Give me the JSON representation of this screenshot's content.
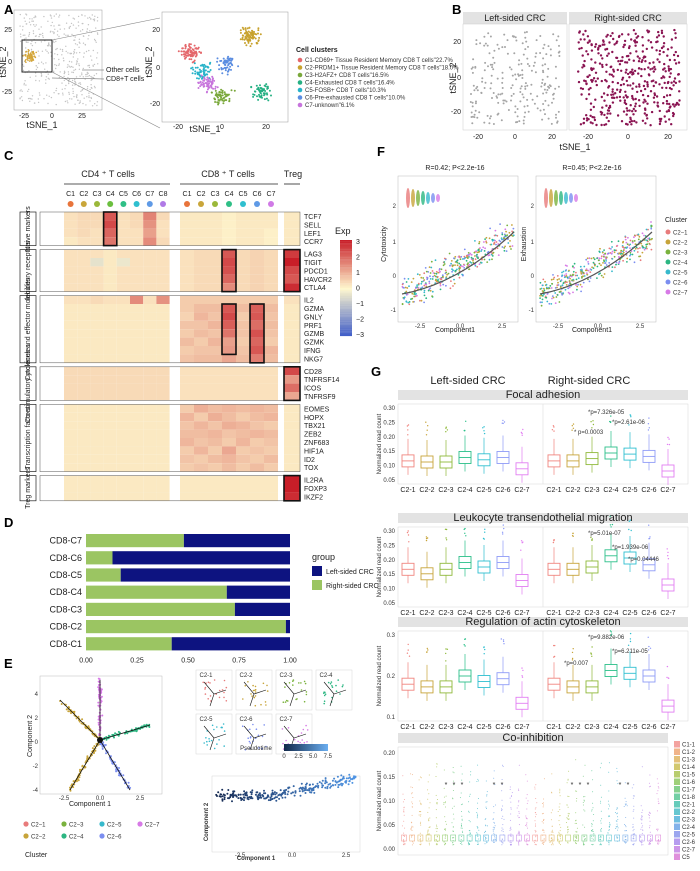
{
  "panels": {
    "a": {
      "letter": "A",
      "xlabel": "tSNE_1",
      "ylabel": "tSNE_2",
      "ticks_x": [
        "-25",
        "0",
        "25"
      ],
      "ticks_y": [
        "-25",
        "0",
        "25"
      ],
      "other_cells": "Other cells",
      "cd8_cells": "CD8+T cells",
      "zoom_ticks_x": [
        "-20",
        "0",
        "20"
      ],
      "zoom_ticks_y": [
        "-20",
        "0",
        "20"
      ],
      "legend_title": "Cell clusters",
      "legend": [
        {
          "label": "C1-CD69+ Tissue Resident Memory CD8 T cells\"22.7%",
          "color": "#e4676b"
        },
        {
          "label": "C2-PRDM1+ Tissue Resident Memory CD8 T cells\"18.0%",
          "color": "#c8a22e"
        },
        {
          "label": "C3-H2AFZ+ CD8 T cells\"16.5%",
          "color": "#7aa83b"
        },
        {
          "label": "C4-Exhausted CD8 T cells\"16.4%",
          "color": "#25b083"
        },
        {
          "label": "C5-FOSB+ CD8 T cells\"10.3%",
          "color": "#27b3c9"
        },
        {
          "label": "C6-Pre-exhausted CD8 T cells\"10.0%",
          "color": "#5b8de1"
        },
        {
          "label": "C7-unknown\"6.1%",
          "color": "#c774dc"
        }
      ]
    },
    "b": {
      "letter": "B",
      "left_title": "Left-sided CRC",
      "right_title": "Right-sided CRC",
      "xlabel": "tSNE_1",
      "ylabel": "tSNE_2",
      "ticks_x": [
        "-20",
        "0",
        "20"
      ],
      "ticks_y": [
        "-20",
        "0",
        "20"
      ],
      "left_color": "#a5a5a5",
      "right_color": "#8a1452"
    },
    "c": {
      "letter": "C",
      "cd4_title": "CD4 ⁺ T cells",
      "cd8_title": "CD8 ⁺ T cells",
      "treg_title": "Treg",
      "cd4_cols": [
        "C1",
        "C2",
        "C3",
        "C4",
        "C5",
        "C6",
        "C7",
        "C8"
      ],
      "cd8_cols": [
        "C1",
        "C2",
        "C3",
        "C4",
        "C5",
        "C6",
        "C7"
      ],
      "groups": [
        {
          "label": "Naive markers",
          "genes": [
            "TCF7",
            "SELL",
            "LEF1",
            "CCR7"
          ]
        },
        {
          "label": "Inhibitory receptors",
          "genes": [
            "LAG3",
            "TIGIT",
            "PDCD1",
            "HAVCR2",
            "CTLA4"
          ]
        },
        {
          "label": "Cytokines and effector molecules",
          "genes": [
            "IL2",
            "GZMA",
            "GNLY",
            "PRF1",
            "GZMB",
            "GZMK",
            "IFNG",
            "NKG7"
          ]
        },
        {
          "label": "Co-stimulatory molecules",
          "genes": [
            "CD28",
            "TNFRSF14",
            "ICOS",
            "TNFRSF9"
          ]
        },
        {
          "label": "Transcription factors",
          "genes": [
            "EOMES",
            "HOPX",
            "TBX21",
            "ZEB2",
            "ZNF683",
            "HIF1A",
            "ID2",
            "TOX"
          ]
        },
        {
          "label": "Treg markers",
          "genes": [
            "IL2RA",
            "FOXP3",
            "IKZF2"
          ]
        }
      ],
      "scale_title": "Exp",
      "scale_ticks": [
        "3",
        "2",
        "1",
        "0",
        "−1",
        "−2",
        "−3"
      ]
    },
    "d": {
      "letter": "D",
      "legend_title": "group",
      "x_ticks": [
        "0.00",
        "0.25",
        "0.50",
        "0.75",
        "1.00"
      ]
    },
    "e": {
      "letter": "E",
      "xlabel": "Component 1",
      "ylabel": "Component 2",
      "ticks_x": [
        "-2.5",
        "0.0",
        "2.5"
      ],
      "ticks_y": [
        "-4",
        "-2",
        "0",
        "2",
        "4"
      ],
      "small_titles": [
        "C2-1",
        "C2-2",
        "C2-3",
        "C2-4",
        "C2-5",
        "C2-6",
        "C2-7"
      ],
      "pseudotime_label": "Pseudotime",
      "pseudotime_ticks": [
        "0",
        "2.5",
        "5.0",
        "7.5"
      ],
      "cluster_title": "Cluster",
      "cluster_legend": [
        "C2−1",
        "C2−3",
        "C2−5",
        "C2−7",
        "C2−2",
        "C2−4",
        "C2−6"
      ]
    },
    "f": {
      "letter": "F",
      "left_stat": "R=0.42; P<2.2e-16",
      "right_stat": "R=0.45; P<2.2e-16",
      "left_ylabel": "Cytotoxicity",
      "right_ylabel": "Exhaustion",
      "xlabel": "Component1",
      "ticks_x": [
        "-2.5",
        "0.0",
        "2.5"
      ],
      "ticks_y": [
        "2",
        "1",
        "0",
        "-1"
      ],
      "legend_title": "Cluster"
    },
    "g": {
      "letter": "G",
      "left_title": "Left-sided CRC",
      "right_title": "Right-sided CRC",
      "ylabel": "Normalized read count",
      "x_cats": [
        "C2-1",
        "C2-2",
        "C2-3",
        "C2-4",
        "C2-5",
        "C2-6",
        "C2-7"
      ],
      "subplots": [
        {
          "title": "Focal adhesion",
          "y_ticks": [
            "0.30",
            "0.25",
            "0.20",
            "0.15",
            "0.10",
            "0.05"
          ],
          "pvals": [
            "*p=7.326e-05",
            "*p=2.61e-06",
            "* p=0.0003"
          ]
        },
        {
          "title": "Leukocyte transendothelial  migration",
          "y_ticks": [
            "0.30",
            "0.25",
            "0.20",
            "0.15",
            "0.10",
            "0.05"
          ],
          "pvals": [
            "*p=5.01e-07",
            "*p=1.939e-06",
            "*p=0.04446"
          ]
        },
        {
          "title": "Regulation of actin cytoskeleton",
          "y_ticks": [
            "0.3",
            "0.2",
            "0.1"
          ],
          "pvals": [
            "*p=9.882e-06",
            "*p=6.211e-05",
            "*p=0.007"
          ]
        },
        {
          "title": "Co-inhibition",
          "y_ticks": [
            "0.20",
            "0.15",
            "0.10",
            "0.05",
            "0.00"
          ],
          "pvals": []
        }
      ],
      "co_legend": [
        "C1-1",
        "C1-2",
        "C1-3",
        "C1-4",
        "C1-5",
        "C1-6",
        "C1-7",
        "C1-8",
        "C2-1",
        "C2-2",
        "C2-3",
        "C2-4",
        "C2-5",
        "C2-6",
        "C2-7",
        "C5"
      ]
    }
  },
  "chart_data": [
    {
      "type": "bar",
      "panel": "D",
      "orientation": "horizontal",
      "stacked": true,
      "categories": [
        "CD8-C7",
        "CD8-C6",
        "CD8-C5",
        "CD8-C4",
        "CD8-C3",
        "CD8-C2",
        "CD8-C1"
      ],
      "series": [
        {
          "name": "Left-sided CRC",
          "color": "#0d1380",
          "values": [
            0.52,
            0.87,
            0.83,
            0.31,
            0.27,
            0.02,
            0.58
          ]
        },
        {
          "name": "Right-sided CRC",
          "color": "#9bc562",
          "values": [
            0.48,
            0.13,
            0.17,
            0.69,
            0.73,
            0.98,
            0.42
          ]
        }
      ],
      "xlim": [
        0,
        1
      ]
    },
    {
      "type": "heatmap",
      "panel": "C",
      "color_range": [
        -3,
        3
      ],
      "columns": [
        "CD4-C1",
        "CD4-C2",
        "CD4-C3",
        "CD4-C4",
        "CD4-C5",
        "CD4-C6",
        "CD4-C7",
        "CD4-C8",
        "CD8-C1",
        "CD8-C2",
        "CD8-C3",
        "CD8-C4",
        "CD8-C5",
        "CD8-C6",
        "CD8-C7",
        "Treg"
      ],
      "rows": [
        "TCF7",
        "SELL",
        "LEF1",
        "CCR7",
        "LAG3",
        "TIGIT",
        "PDCD1",
        "HAVCR2",
        "CTLA4",
        "IL2",
        "GZMA",
        "GNLY",
        "PRF1",
        "GZMB",
        "GZMK",
        "IFNG",
        "NKG7",
        "CD28",
        "TNFRSF14",
        "ICOS",
        "TNFRSF9",
        "EOMES",
        "HOPX",
        "TBX21",
        "ZEB2",
        "ZNF683",
        "HIF1A",
        "ID2",
        "TOX",
        "IL2RA",
        "FOXP3",
        "IKZF2"
      ],
      "values": [
        [
          0.3,
          0.4,
          0.4,
          2.2,
          0.3,
          0.4,
          1.6,
          0.4,
          0.2,
          0.2,
          0.2,
          0.1,
          0.2,
          0.2,
          0.2,
          0.2
        ],
        [
          0.3,
          0.4,
          0.4,
          2.4,
          0.3,
          0.4,
          1.4,
          0.3,
          0.2,
          0.2,
          0.2,
          0.1,
          0.2,
          0.2,
          0.2,
          0.2
        ],
        [
          0.3,
          0.4,
          0.3,
          2.0,
          0.3,
          0.3,
          1.2,
          0.3,
          0.2,
          0.2,
          0.2,
          0.1,
          0.2,
          0.2,
          0.1,
          0.2
        ],
        [
          0.2,
          0.3,
          0.3,
          1.8,
          0.3,
          0.3,
          1.5,
          0.4,
          0.2,
          0.2,
          0.2,
          0.1,
          0.2,
          0.2,
          0.1,
          0.2
        ],
        [
          0.3,
          0.3,
          0.3,
          0.2,
          0.3,
          0.3,
          0.3,
          0.3,
          0.3,
          0.4,
          0.4,
          2.2,
          0.4,
          0.5,
          0.4,
          2.6
        ],
        [
          0.3,
          0.3,
          -0.4,
          0.2,
          -0.3,
          0.3,
          0.3,
          0.3,
          0.3,
          0.4,
          0.4,
          2.4,
          0.4,
          0.5,
          0.4,
          3.0
        ],
        [
          0.3,
          0.3,
          0.3,
          0.2,
          0.3,
          0.3,
          0.3,
          0.3,
          0.3,
          0.4,
          0.4,
          2.3,
          0.4,
          0.5,
          0.4,
          2.4
        ],
        [
          0.3,
          0.3,
          0.3,
          0.2,
          0.3,
          0.3,
          0.3,
          0.3,
          0.3,
          0.4,
          0.4,
          2.0,
          0.4,
          0.5,
          0.4,
          2.2
        ],
        [
          0.3,
          0.3,
          0.3,
          0.2,
          0.3,
          0.3,
          0.3,
          0.3,
          0.3,
          0.4,
          0.4,
          1.5,
          0.4,
          0.5,
          0.4,
          2.8
        ],
        [
          0.3,
          0.3,
          0.4,
          0.3,
          0.3,
          1.5,
          0.3,
          1.4,
          0.6,
          0.6,
          0.6,
          0.6,
          0.6,
          0.6,
          0.6,
          0.3
        ],
        [
          0.2,
          0.2,
          0.2,
          0.2,
          0.2,
          0.2,
          0.2,
          0.2,
          0.6,
          0.8,
          0.8,
          2.2,
          0.8,
          2.1,
          0.8,
          0.2
        ],
        [
          0.2,
          0.2,
          0.2,
          0.2,
          0.2,
          0.2,
          0.2,
          0.2,
          0.5,
          0.9,
          0.7,
          2.4,
          0.6,
          2.2,
          0.7,
          0.2
        ],
        [
          0.2,
          0.2,
          0.2,
          0.2,
          0.2,
          0.2,
          0.2,
          0.2,
          0.7,
          0.7,
          0.9,
          2.1,
          0.7,
          1.9,
          0.8,
          0.2
        ],
        [
          0.2,
          0.2,
          0.2,
          0.2,
          0.2,
          0.2,
          0.2,
          0.2,
          0.6,
          0.8,
          0.7,
          1.8,
          0.7,
          2.3,
          0.7,
          0.2
        ],
        [
          0.2,
          0.2,
          0.2,
          0.2,
          0.2,
          0.2,
          0.2,
          0.2,
          0.8,
          0.6,
          0.9,
          1.2,
          0.6,
          2.0,
          0.6,
          0.2
        ],
        [
          0.2,
          0.2,
          0.2,
          0.2,
          0.2,
          0.2,
          0.2,
          0.2,
          0.6,
          0.7,
          0.7,
          1.3,
          0.7,
          2.2,
          0.9,
          0.2
        ],
        [
          0.2,
          0.2,
          0.2,
          0.2,
          0.2,
          0.2,
          0.2,
          0.2,
          0.7,
          0.8,
          0.8,
          1.1,
          0.8,
          1.7,
          0.8,
          0.2
        ],
        [
          0.4,
          0.4,
          0.4,
          0.4,
          0.4,
          0.4,
          0.4,
          0.4,
          0.3,
          0.3,
          0.3,
          0.3,
          0.3,
          0.3,
          0.3,
          2.4
        ],
        [
          0.4,
          0.4,
          0.4,
          0.4,
          0.4,
          0.4,
          0.4,
          0.4,
          0.3,
          0.3,
          0.3,
          0.3,
          0.3,
          0.3,
          0.3,
          1.3
        ],
        [
          0.4,
          0.4,
          0.4,
          0.4,
          0.4,
          0.4,
          0.4,
          0.4,
          0.3,
          0.3,
          0.3,
          0.3,
          0.3,
          0.3,
          0.3,
          1.9
        ],
        [
          0.4,
          0.4,
          0.4,
          0.4,
          0.4,
          0.4,
          0.4,
          0.4,
          0.3,
          0.3,
          0.3,
          0.3,
          0.3,
          0.3,
          0.3,
          1.1
        ],
        [
          0.2,
          0.2,
          0.2,
          0.2,
          0.2,
          0.2,
          0.2,
          0.2,
          0.6,
          1.0,
          0.8,
          0.9,
          0.8,
          0.9,
          0.8,
          0.2
        ],
        [
          0.2,
          0.2,
          0.2,
          0.2,
          0.2,
          0.2,
          0.2,
          0.2,
          0.9,
          0.6,
          1.0,
          0.8,
          0.6,
          0.8,
          0.9,
          0.2
        ],
        [
          0.2,
          0.2,
          0.2,
          0.2,
          0.2,
          0.2,
          0.2,
          0.2,
          0.7,
          0.9,
          0.7,
          1.0,
          0.9,
          0.7,
          0.6,
          0.2
        ],
        [
          0.2,
          0.2,
          0.2,
          0.2,
          0.2,
          0.2,
          0.2,
          0.2,
          0.8,
          0.8,
          0.9,
          0.7,
          0.8,
          0.9,
          0.8,
          0.2
        ],
        [
          0.2,
          0.2,
          0.2,
          0.2,
          0.2,
          0.2,
          0.2,
          0.2,
          0.9,
          0.7,
          0.8,
          0.6,
          0.9,
          0.6,
          0.7,
          0.2
        ],
        [
          0.2,
          0.2,
          0.2,
          0.2,
          0.2,
          0.2,
          0.2,
          0.2,
          0.6,
          0.9,
          0.6,
          1.1,
          0.6,
          0.7,
          0.6,
          0.2
        ],
        [
          0.2,
          0.2,
          0.2,
          0.2,
          0.2,
          0.2,
          0.2,
          0.2,
          0.7,
          0.6,
          0.8,
          0.9,
          0.7,
          0.6,
          0.8,
          0.2
        ],
        [
          0.2,
          0.2,
          0.2,
          0.2,
          0.2,
          0.2,
          0.2,
          0.2,
          0.6,
          0.7,
          0.6,
          0.8,
          0.6,
          0.8,
          0.6,
          0.2
        ],
        [
          0.2,
          0.2,
          0.2,
          0.2,
          0.2,
          0.2,
          0.2,
          0.2,
          0.2,
          0.2,
          0.2,
          0.2,
          0.2,
          0.2,
          0.2,
          3.0
        ],
        [
          0.2,
          0.2,
          0.2,
          0.2,
          0.2,
          0.2,
          0.2,
          0.2,
          0.2,
          0.2,
          0.2,
          0.2,
          0.2,
          0.2,
          0.2,
          3.0
        ],
        [
          0.2,
          0.2,
          0.2,
          0.2,
          0.2,
          0.2,
          0.2,
          0.2,
          0.2,
          0.2,
          0.2,
          0.2,
          0.2,
          0.2,
          0.2,
          2.8
        ]
      ]
    },
    {
      "type": "bar",
      "panel": "G",
      "note_type": "boxplot",
      "categories": [
        "C2-1",
        "C2-2",
        "C2-3",
        "C2-4",
        "C2-5",
        "C2-6",
        "C2-7"
      ],
      "colors": [
        "#f0857f",
        "#c7a43a",
        "#8fb93a",
        "#2cc08a",
        "#2fbfd0",
        "#8f9cf7",
        "#e27ff2"
      ],
      "series": [
        {
          "name": "Focal adhesion - Left-sided CRC",
          "values": [
            0.085,
            0.08,
            0.08,
            0.1,
            0.09,
            0.1,
            0.05
          ]
        },
        {
          "name": "Focal adhesion - Right-sided CRC",
          "values": [
            0.085,
            0.085,
            0.095,
            0.12,
            0.115,
            0.105,
            0.04
          ]
        },
        {
          "name": "Leukocyte transendothelial  migration - Left-sided CRC",
          "values": [
            0.15,
            0.13,
            0.15,
            0.18,
            0.16,
            0.18,
            0.1
          ]
        },
        {
          "name": "Leukocyte transendothelial  migration - Right-sided CRC",
          "values": [
            0.15,
            0.15,
            0.16,
            0.21,
            0.2,
            0.17,
            0.08
          ]
        },
        {
          "name": "Regulation of actin cytoskeleton - Left-sided CRC",
          "values": [
            0.12,
            0.11,
            0.11,
            0.15,
            0.13,
            0.14,
            0.05
          ]
        },
        {
          "name": "Regulation of actin cytoskeleton - Right-sided CRC",
          "values": [
            0.12,
            0.11,
            0.11,
            0.17,
            0.16,
            0.15,
            0.04
          ]
        }
      ]
    }
  ]
}
